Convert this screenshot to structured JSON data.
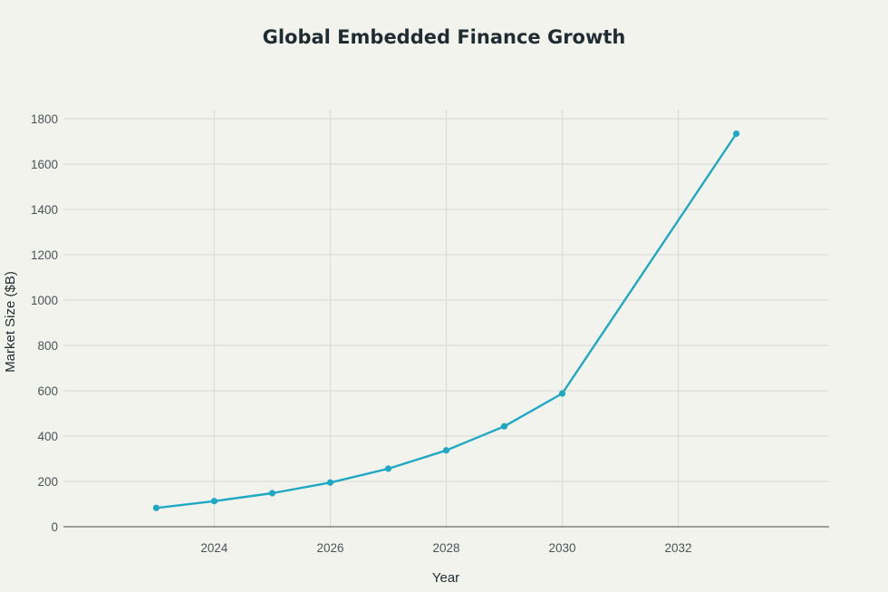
{
  "chart_data": {
    "type": "line",
    "title": "Global Embedded Finance Growth",
    "xlabel": "Year",
    "ylabel": "Market Size ($B)",
    "x": [
      2023,
      2024,
      2025,
      2026,
      2027,
      2028,
      2029,
      2030,
      2033
    ],
    "series": [
      {
        "values": [
          83,
          113,
          148,
          195,
          256,
          337,
          443,
          588,
          1734
        ],
        "color": "#1fa8c4"
      }
    ],
    "xlim": [
      2021.4,
      2034.6
    ],
    "ylim": [
      0,
      1800
    ],
    "xticks": [
      2024,
      2026,
      2028,
      2030,
      2032
    ],
    "yticks": [
      0,
      200,
      400,
      600,
      800,
      1000,
      1200,
      1400,
      1600,
      1800
    ],
    "grid": true,
    "legend": "none"
  }
}
